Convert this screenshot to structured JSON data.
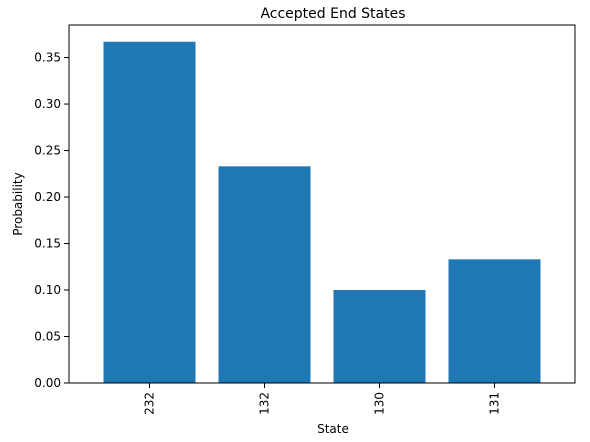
{
  "chart_data": {
    "type": "bar",
    "title": "Accepted End States",
    "xlabel": "State",
    "ylabel": "Probability",
    "categories": [
      "232",
      "132",
      "130",
      "131"
    ],
    "values": [
      0.367,
      0.233,
      0.1,
      0.133
    ],
    "ylim": [
      0,
      0.385
    ],
    "yticks": [
      "0.00",
      "0.05",
      "0.10",
      "0.15",
      "0.20",
      "0.25",
      "0.30",
      "0.35"
    ],
    "bar_color": "#1f77b4",
    "grid": false,
    "legend": "none"
  }
}
